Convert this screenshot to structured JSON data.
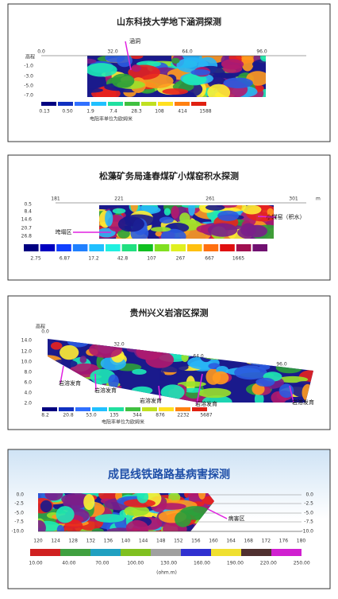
{
  "panels": [
    {
      "title": "山东科技大学地下涵洞探测",
      "x_ticks": [
        "0.0",
        "32.0",
        "64.0",
        "96.0"
      ],
      "y_label": "高程",
      "y_ticks": [
        "-1.0",
        "-3.0",
        "-5.0",
        "-7.0"
      ],
      "scale_labels": [
        "0.13",
        "0.50",
        "1.9",
        "7.4",
        "28.3",
        "108",
        "414",
        "1588"
      ],
      "scale_caption": "电阻率单位为欧姆米",
      "annotations": [
        "涵洞"
      ]
    },
    {
      "title": "松藻矿务局逢春煤矿小煤窑积水探测",
      "x_ticks": [
        "181",
        "221",
        "261",
        "301"
      ],
      "x_unit": "m",
      "y_ticks": [
        "0.5",
        "8.4",
        "14.6",
        "20.7",
        "26.8"
      ],
      "scale_labels": [
        "2.75",
        "6.87",
        "17.2",
        "42.8",
        "107",
        "267",
        "667",
        "1665"
      ],
      "annotations": [
        "小煤窑（积水）",
        "垮塌区"
      ]
    },
    {
      "title": "贵州兴义岩溶区探测",
      "y_label": "高程",
      "x_ticks": [
        "0.0",
        "32.0",
        "64.0",
        "96.0"
      ],
      "y_ticks": [
        "14.0",
        "12.0",
        "10.0",
        "8.0",
        "6.0",
        "4.0",
        "2.0"
      ],
      "scale_labels": [
        "8.2",
        "20.8",
        "53.0",
        "135",
        "344",
        "876",
        "2232",
        "5687"
      ],
      "scale_caption": "电阻率单位为欧姆米",
      "annotations": [
        "岩溶发育",
        "岩溶发育",
        "岩溶发育",
        "岩溶发育",
        "岩溶发育"
      ]
    },
    {
      "title": "成昆线铁路路基病害探测",
      "x_ticks": [
        "120",
        "124",
        "128",
        "132",
        "136",
        "140",
        "144",
        "148",
        "152",
        "156",
        "160",
        "164",
        "168",
        "172",
        "176",
        "180"
      ],
      "y_ticks": [
        "0.0",
        "-2.5",
        "-5.0",
        "-7.5",
        "-10.0"
      ],
      "scale_labels": [
        "10.00",
        "40.00",
        "70.00",
        "100.00",
        "130.00",
        "160.00",
        "190.00",
        "220.00",
        "250.00"
      ],
      "scale_caption": "(ohm.m)",
      "annotations": [
        "病害区"
      ]
    }
  ]
}
